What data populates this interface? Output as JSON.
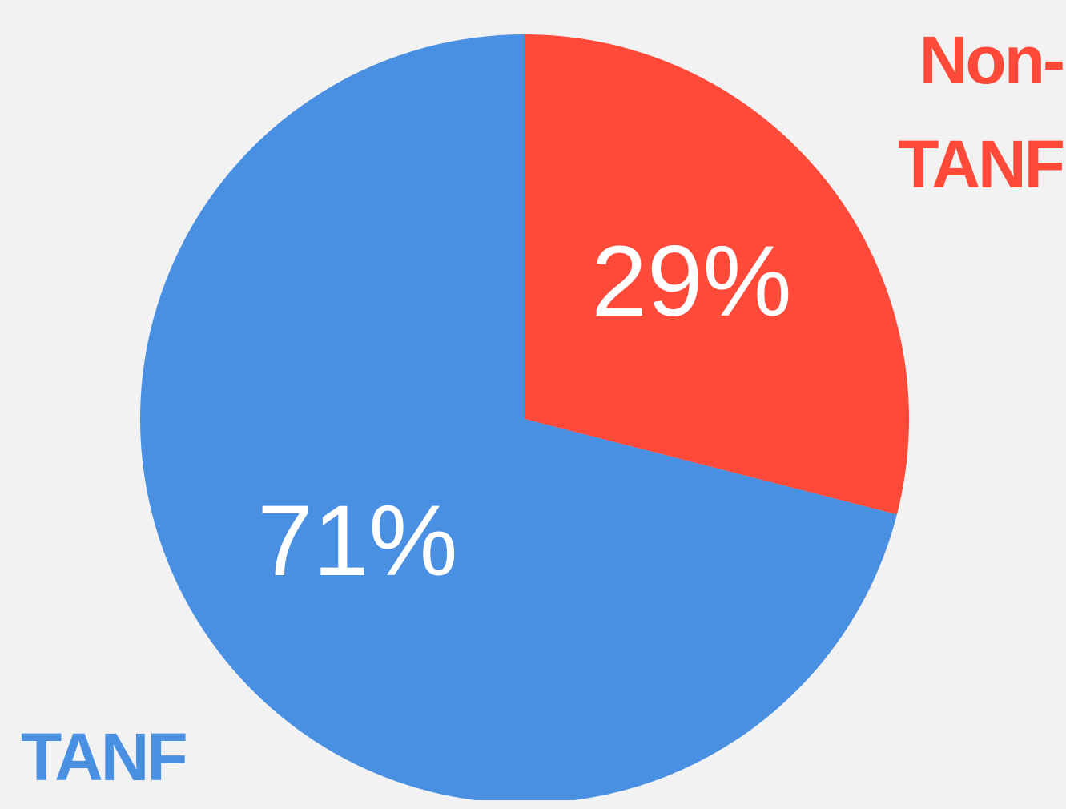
{
  "chart_data": {
    "type": "pie",
    "categories": [
      "Non-TANF",
      "TANF"
    ],
    "values": [
      29,
      71
    ],
    "value_labels": [
      "29%",
      "71%"
    ],
    "colors": [
      "#ff4a3a",
      "#4a90e2"
    ]
  }
}
